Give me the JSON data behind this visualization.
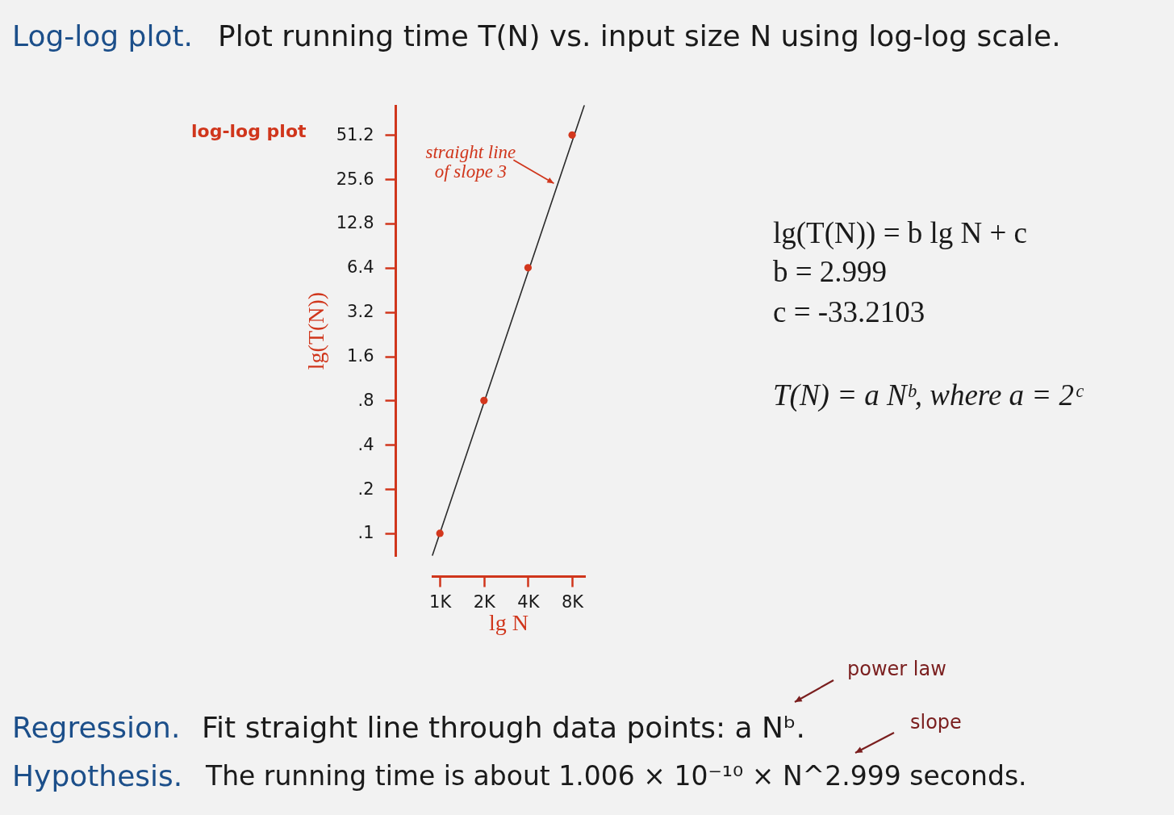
{
  "chart_data": {
    "type": "scatter",
    "title": "Log-log plot.",
    "subtitle": "Plot running time T(N) vs. input size N using log-log scale.",
    "xlabel": "lg N",
    "ylabel": "lg(T(N))",
    "log": "xy",
    "marker": "circle",
    "x": [
      1000,
      2000,
      4000,
      8000
    ],
    "series": [
      {
        "color": "#d3371d",
        "values": [
          0.1,
          0.8,
          6.4,
          51.2
        ]
      },
      {
        "type": "line",
        "color": "#2b2b2b",
        "x": [
          890,
          9670
        ],
        "values": [
          0.071,
          81
        ],
        "marker": "none"
      }
    ],
    "xlim": [
      890,
      9670
    ],
    "ylim": [
      0.071,
      81
    ],
    "xticks": [
      {
        "value": 1000,
        "label": "1K"
      },
      {
        "value": 2000,
        "label": "2K"
      },
      {
        "value": 4000,
        "label": "4K"
      },
      {
        "value": 8000,
        "label": "8K"
      }
    ],
    "yticks": [
      {
        "value": 0.1,
        "label": ".1"
      },
      {
        "value": 0.2,
        "label": ".2"
      },
      {
        "value": 0.4,
        "label": ".4"
      },
      {
        "value": 0.8,
        "label": ".8"
      },
      1.6,
      3.2,
      6.4,
      12.8,
      25.6,
      51.2
    ],
    "annotations": [
      "log-log plot",
      {
        "text": "straight line\nof slope 3",
        "x": 6000,
        "y": 24
      },
      "lg(T(N)) = b lg N + c",
      "b = 2.999",
      "c = -33.2103",
      "T(N) = a Nᵇ, where a = 2ᶜ",
      "Regression.",
      "Fit straight line through data points:  a Nᵇ.",
      "Hypothesis.",
      "The running time is about 1.006 × 10⁻¹⁰ × N^2.999 seconds.",
      "power law",
      "slope"
    ]
  }
}
